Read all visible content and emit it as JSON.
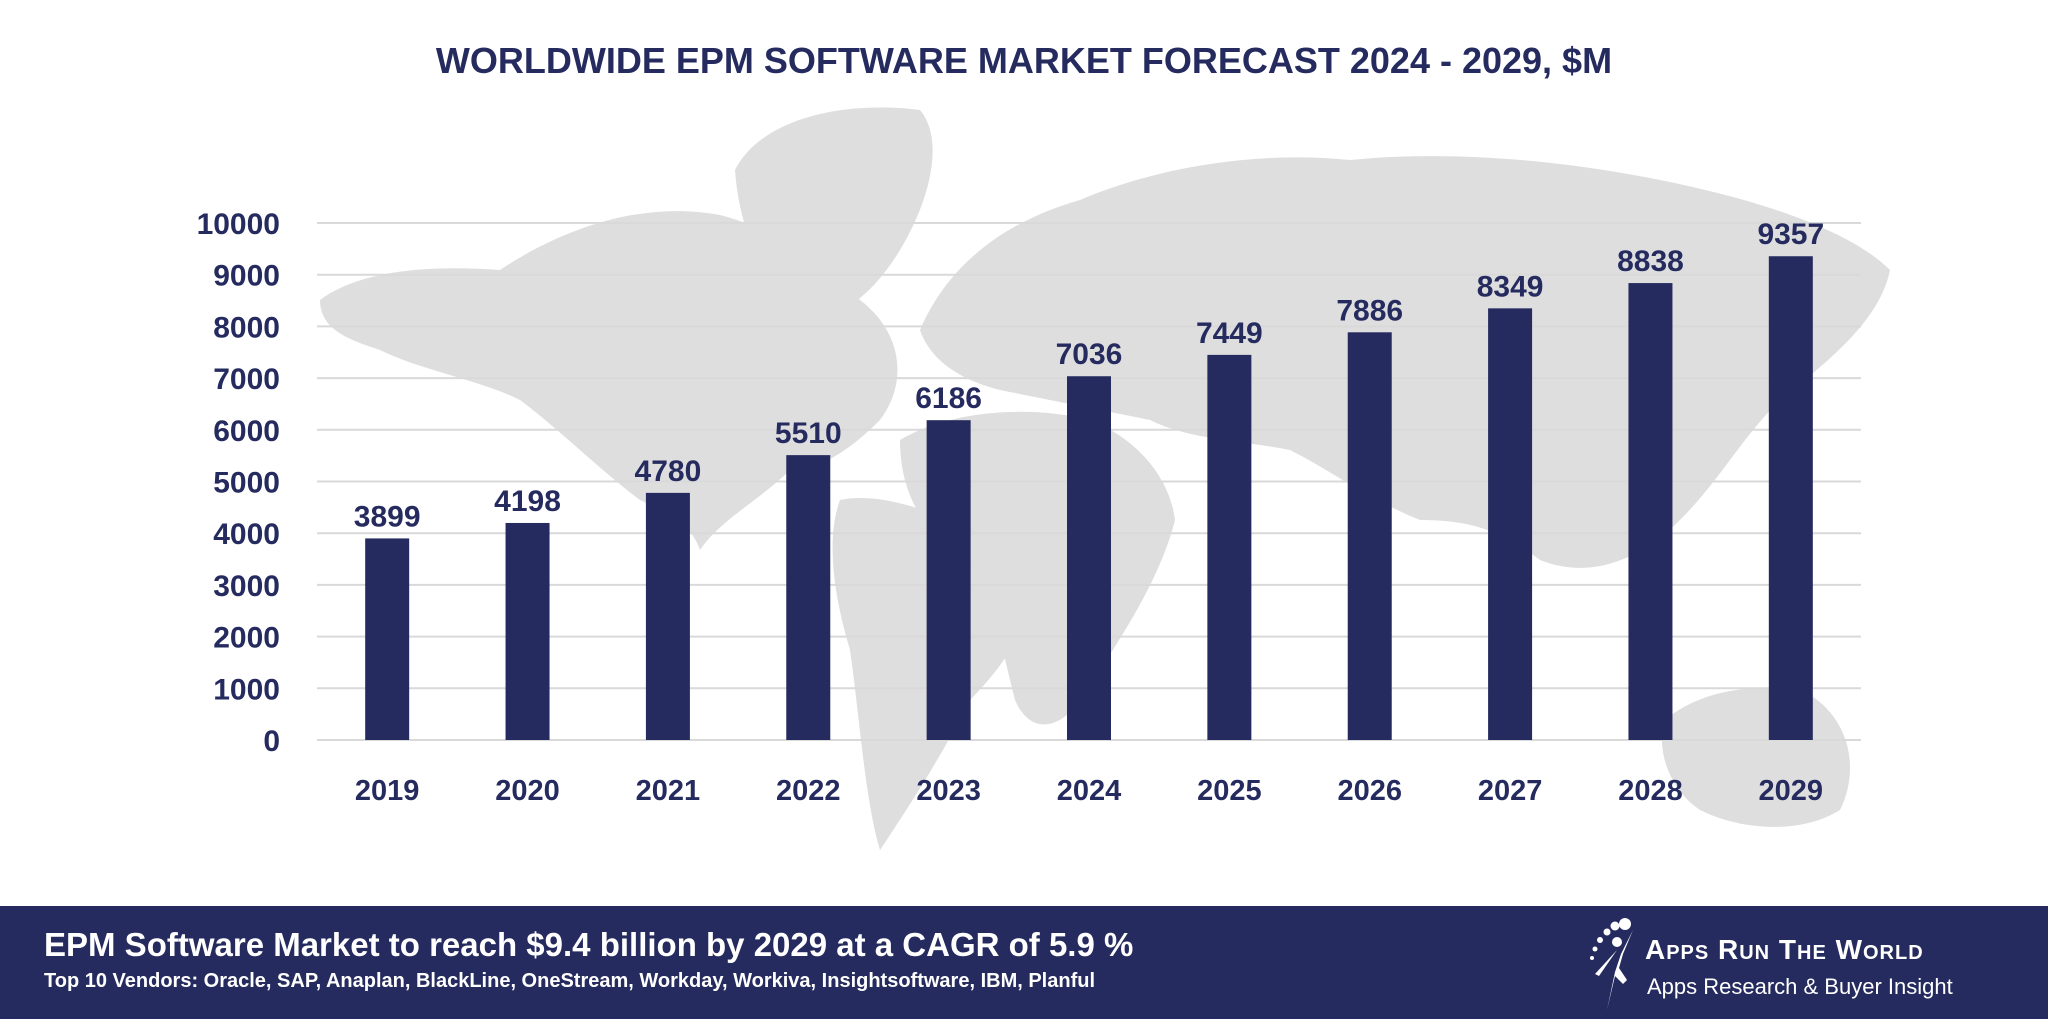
{
  "chart_data": {
    "type": "bar",
    "title": "WORLDWIDE EPM SOFTWARE MARKET FORECAST 2024 - 2029, $M",
    "categories": [
      "2019",
      "2020",
      "2021",
      "2022",
      "2023",
      "2024",
      "2025",
      "2026",
      "2027",
      "2028",
      "2029"
    ],
    "values": [
      3899,
      4198,
      4780,
      5510,
      6186,
      7036,
      7449,
      7886,
      8349,
      8838,
      9357
    ],
    "yticks": [
      0,
      1000,
      2000,
      3000,
      4000,
      5000,
      6000,
      7000,
      8000,
      9000,
      10000
    ],
    "ylim": [
      0,
      10000
    ],
    "grid": true,
    "data_labels": true,
    "xlabel": "",
    "ylabel": "",
    "colors": {
      "bar": "#252b5e",
      "text": "#252b5e",
      "grid": "#d9d9d9",
      "map": "#dededf"
    }
  },
  "footer": {
    "headline": "EPM Software Market to reach $9.4 billion by 2029 at a CAGR of 5.9 %",
    "vendors": "Top 10 Vendors: Oracle, SAP, Anaplan, BlackLine, OneStream, Workday, Workiva, Insightsoftware, IBM, Planful",
    "background": "#252b5e"
  },
  "logo": {
    "name": "Apps Run The World",
    "tagline": "Apps Research & Buyer Insight"
  }
}
